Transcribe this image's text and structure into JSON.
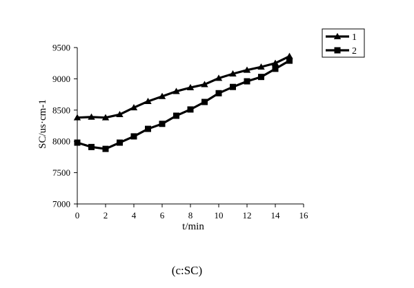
{
  "chart_data": {
    "type": "line",
    "title": "",
    "caption": "(c:SC)",
    "xlabel": "t/min",
    "ylabel": "SC/us·cm-1",
    "xlim": [
      0,
      16
    ],
    "ylim": [
      7000,
      9500
    ],
    "xticks": [
      0,
      2,
      4,
      6,
      8,
      10,
      12,
      14,
      16
    ],
    "yticks": [
      7000,
      7500,
      8000,
      8500,
      9000,
      9500
    ],
    "grid": false,
    "legend_position": "top-right",
    "x": [
      0,
      1,
      2,
      3,
      4,
      5,
      6,
      7,
      8,
      9,
      10,
      11,
      12,
      13,
      14,
      15
    ],
    "series": [
      {
        "name": "1",
        "marker": "triangle",
        "values": [
          8380,
          8390,
          8380,
          8430,
          8540,
          8640,
          8720,
          8800,
          8860,
          8910,
          9010,
          9080,
          9140,
          9190,
          9250,
          9360
        ]
      },
      {
        "name": "2",
        "marker": "square",
        "values": [
          7980,
          7910,
          7880,
          7980,
          8080,
          8200,
          8280,
          8410,
          8510,
          8630,
          8770,
          8870,
          8960,
          9030,
          9160,
          9290
        ]
      }
    ]
  }
}
